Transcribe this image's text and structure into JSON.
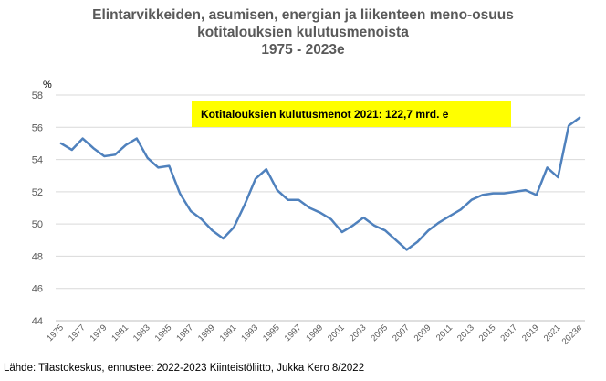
{
  "chart_data": {
    "type": "line",
    "title_lines": [
      "Elintarvikkeiden, asumisen, energian ja liikenteen meno-osuus",
      "kotitalouksien kulutusmenoista",
      "1975 - 2023e"
    ],
    "y_unit": "%",
    "ylim": [
      44,
      58
    ],
    "y_ticks": [
      44,
      46,
      48,
      50,
      52,
      54,
      56,
      58
    ],
    "x": [
      "1975",
      "1976",
      "1977",
      "1978",
      "1979",
      "1980",
      "1981",
      "1982",
      "1983",
      "1984",
      "1985",
      "1986",
      "1987",
      "1988",
      "1989",
      "1990",
      "1991",
      "1992",
      "1993",
      "1994",
      "1995",
      "1996",
      "1997",
      "1998",
      "1999",
      "2000",
      "2001",
      "2002",
      "2003",
      "2004",
      "2005",
      "2006",
      "2007",
      "2008",
      "2009",
      "2010",
      "2011",
      "2012",
      "2013",
      "2014",
      "2015",
      "2016",
      "2017",
      "2018",
      "2019",
      "2020",
      "2021",
      "2022",
      "2023e"
    ],
    "x_tick_labels": [
      "1975",
      "1977",
      "1979",
      "1981",
      "1983",
      "1985",
      "1987",
      "1989",
      "1991",
      "1993",
      "1995",
      "1997",
      "1999",
      "2001",
      "2003",
      "2005",
      "2007",
      "2009",
      "2011",
      "2013",
      "2015",
      "2017",
      "2019",
      "2021",
      "2023e"
    ],
    "values": [
      55.0,
      54.6,
      55.3,
      54.7,
      54.2,
      54.3,
      54.9,
      55.3,
      54.1,
      53.5,
      53.6,
      51.9,
      50.8,
      50.3,
      49.6,
      49.1,
      49.8,
      51.2,
      52.8,
      53.4,
      52.1,
      51.5,
      51.5,
      51.0,
      50.7,
      50.3,
      49.5,
      49.9,
      50.4,
      49.9,
      49.6,
      49.0,
      48.4,
      48.9,
      49.6,
      50.1,
      50.5,
      50.9,
      51.5,
      51.8,
      51.9,
      51.9,
      52.0,
      52.1,
      51.8,
      53.5,
      52.9,
      56.1,
      56.6
    ],
    "line_color": "#4f81bd",
    "grid": true,
    "annotation": "Kotitalouksien kulutusmenot 2021: 122,7 mrd. e",
    "annotation_color": "#ffff00",
    "source": "Lähde: Tilastokeskus, ennusteet 2022-2023 Kiinteistöliitto, Jukka Kero 8/2022"
  }
}
